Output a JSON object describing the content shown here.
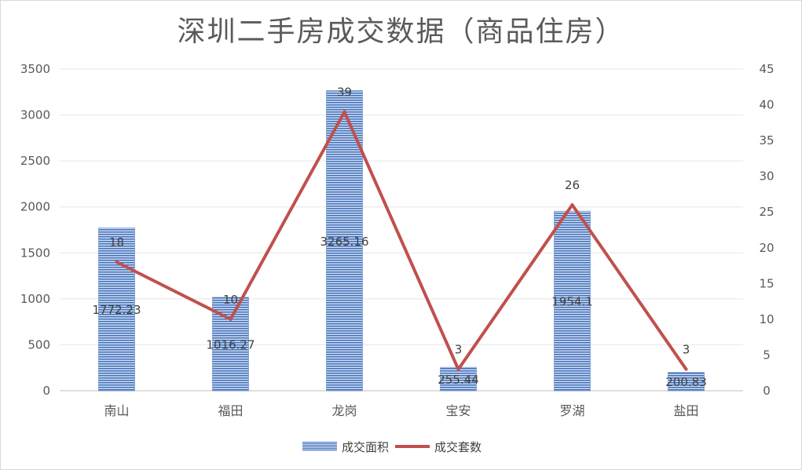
{
  "title": "深圳二手房成交数据（商品住房）",
  "chart_data": {
    "type": "bar",
    "categories": [
      "南山",
      "福田",
      "龙岗",
      "宝安",
      "罗湖",
      "盐田"
    ],
    "series": [
      {
        "name": "成交面积",
        "type": "bar",
        "axis": "left",
        "values": [
          1772.23,
          1016.27,
          3265.16,
          255.44,
          1954.1,
          200.83
        ],
        "labels": [
          "1772.23",
          "1016.27",
          "3265.16",
          "255.44",
          "1954.1",
          "200.83"
        ],
        "color": "#4a78c0"
      },
      {
        "name": "成交套数",
        "type": "line",
        "axis": "right",
        "values": [
          18,
          10,
          39,
          3,
          26,
          3
        ],
        "labels": [
          "18",
          "10",
          "39",
          "3",
          "26",
          "3"
        ],
        "color": "#c0504d"
      }
    ],
    "y_left": {
      "min": 0,
      "max": 3500,
      "ticks": [
        "0",
        "500",
        "1000",
        "1500",
        "2000",
        "2500",
        "3000",
        "3500"
      ]
    },
    "y_right": {
      "min": 0,
      "max": 45,
      "ticks": [
        "0",
        "5",
        "10",
        "15",
        "20",
        "25",
        "30",
        "35",
        "40",
        "45"
      ]
    },
    "grid": true,
    "legend_position": "bottom"
  }
}
